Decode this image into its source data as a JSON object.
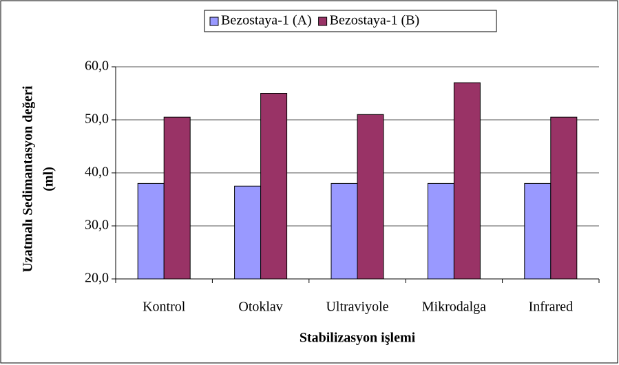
{
  "chart_data": {
    "type": "bar",
    "y_label": [
      "Uzatmalı Sedimantasyon değeri",
      "(ml)"
    ],
    "x_label": "Stabilizasyon işlemi",
    "categories": [
      "Kontrol",
      "Otoklav",
      "Ultraviyole",
      "Mikrodalga",
      "Infrared"
    ],
    "series": [
      {
        "name": "Bezostaya-1 (A)",
        "color": "#9999ff",
        "values": [
          38,
          37.5,
          38,
          38,
          38
        ]
      },
      {
        "name": "Bezostaya-1 (B)",
        "color": "#993366",
        "values": [
          50.5,
          55,
          51,
          57,
          50.5
        ]
      }
    ],
    "ylim": [
      20,
      60
    ],
    "yticks": [
      {
        "value": 20,
        "label": "20,0"
      },
      {
        "value": 30,
        "label": "30,0"
      },
      {
        "value": 40,
        "label": "40,0"
      },
      {
        "value": 50,
        "label": "50,0"
      },
      {
        "value": 60,
        "label": "60,0"
      }
    ],
    "grid": true,
    "legend": "top"
  }
}
